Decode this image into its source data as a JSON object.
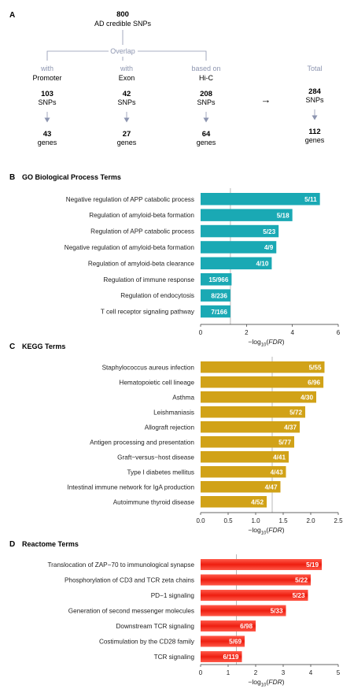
{
  "panel_a": {
    "letter": "A",
    "top_count": "800",
    "top_label": "AD credible SNPs",
    "overlap_label": "Overlap",
    "total_label": "Total",
    "snps_unit": "SNPs",
    "genes_unit": "genes",
    "arrow_glyph": "→",
    "columns": [
      {
        "prefix": "with",
        "name": "Promoter",
        "snps": "103",
        "genes": "43"
      },
      {
        "prefix": "with",
        "name": "Exon",
        "snps": "42",
        "genes": "27"
      },
      {
        "prefix": "based on",
        "name": "Hi-C",
        "snps": "208",
        "genes": "64"
      }
    ],
    "total": {
      "snps": "284",
      "genes": "112"
    },
    "accent_color": "#8d95b0"
  },
  "chart_data": [
    {
      "type": "bar",
      "orientation": "horizontal",
      "letter": "B",
      "title": "GO Biological Process Terms",
      "categories": [
        "Negative regulation of APP catabolic process",
        "Regulation of amyloid-beta formation",
        "Regulation of APP catabolic process",
        "Negative regulation of amyloid-beta formation",
        "Regulation of amyloid-beta clearance",
        "Regulation of immune response",
        "Regulation of endocytosis",
        "T cell receptor signaling pathway"
      ],
      "values": [
        5.2,
        4.0,
        3.4,
        3.3,
        3.1,
        1.35,
        1.3,
        1.3
      ],
      "labels": [
        "5/11",
        "5/18",
        "5/23",
        "4/9",
        "4/10",
        "15/966",
        "8/236",
        "7/166"
      ],
      "ticks": [
        "0",
        "2",
        "4",
        "6"
      ],
      "tick_values": [
        0,
        2,
        4,
        6
      ],
      "xlim": [
        0,
        6
      ],
      "threshold": 1.3,
      "xlabel_prefix": "−log",
      "xlabel_sub": "10",
      "xlabel_var": "FDR",
      "color": "#1aa9b4"
    },
    {
      "type": "bar",
      "orientation": "horizontal",
      "letter": "C",
      "title": "KEGG Terms",
      "categories": [
        "Staphylococcus aureus infection",
        "Hematopoietic cell lineage",
        "Asthma",
        "Leishmaniasis",
        "Allograft rejection",
        "Antigen processing and presentation",
        "Graft−versus−host disease",
        "Type I diabetes mellitus",
        "Intestinal immune network for IgA production",
        "Autoimmune thyroid disease"
      ],
      "values": [
        2.25,
        2.23,
        2.1,
        1.9,
        1.8,
        1.7,
        1.6,
        1.55,
        1.45,
        1.2
      ],
      "labels": [
        "5/55",
        "6/96",
        "4/30",
        "5/72",
        "4/37",
        "5/77",
        "4/41",
        "4/43",
        "4/47",
        "4/52"
      ],
      "ticks": [
        "0.0",
        "0.5",
        "1.0",
        "1.5",
        "2.0",
        "2.5"
      ],
      "tick_values": [
        0,
        0.5,
        1.0,
        1.5,
        2.0,
        2.5
      ],
      "xlim": [
        0,
        2.5
      ],
      "threshold": 1.3,
      "xlabel_prefix": "−log",
      "xlabel_sub": "10",
      "xlabel_var": "FDR",
      "color": "#d1a218"
    },
    {
      "type": "bar",
      "orientation": "horizontal",
      "letter": "D",
      "title": "Reactome Terms",
      "categories": [
        "Translocation of ZAP−70 to immunological synapse",
        "Phosphorylation of CD3 and TCR zeta chains",
        "PD−1 signaling",
        "Generation of second messenger molecules",
        "Downstream TCR signaling",
        "Costimulation by the CD28 family",
        "TCR signaling"
      ],
      "values": [
        4.4,
        4.0,
        3.9,
        3.1,
        2.0,
        1.6,
        1.5
      ],
      "labels": [
        "5/19",
        "5/22",
        "5/23",
        "5/33",
        "6/98",
        "5/69",
        "6/119"
      ],
      "ticks": [
        "0",
        "1",
        "2",
        "3",
        "4",
        "5"
      ],
      "tick_values": [
        0,
        1,
        2,
        3,
        4,
        5
      ],
      "xlim": [
        0,
        5
      ],
      "threshold": 1.3,
      "xlabel_prefix": "−log",
      "xlabel_sub": "10",
      "xlabel_var": "FDR",
      "color": "#ee2a1a"
    }
  ]
}
